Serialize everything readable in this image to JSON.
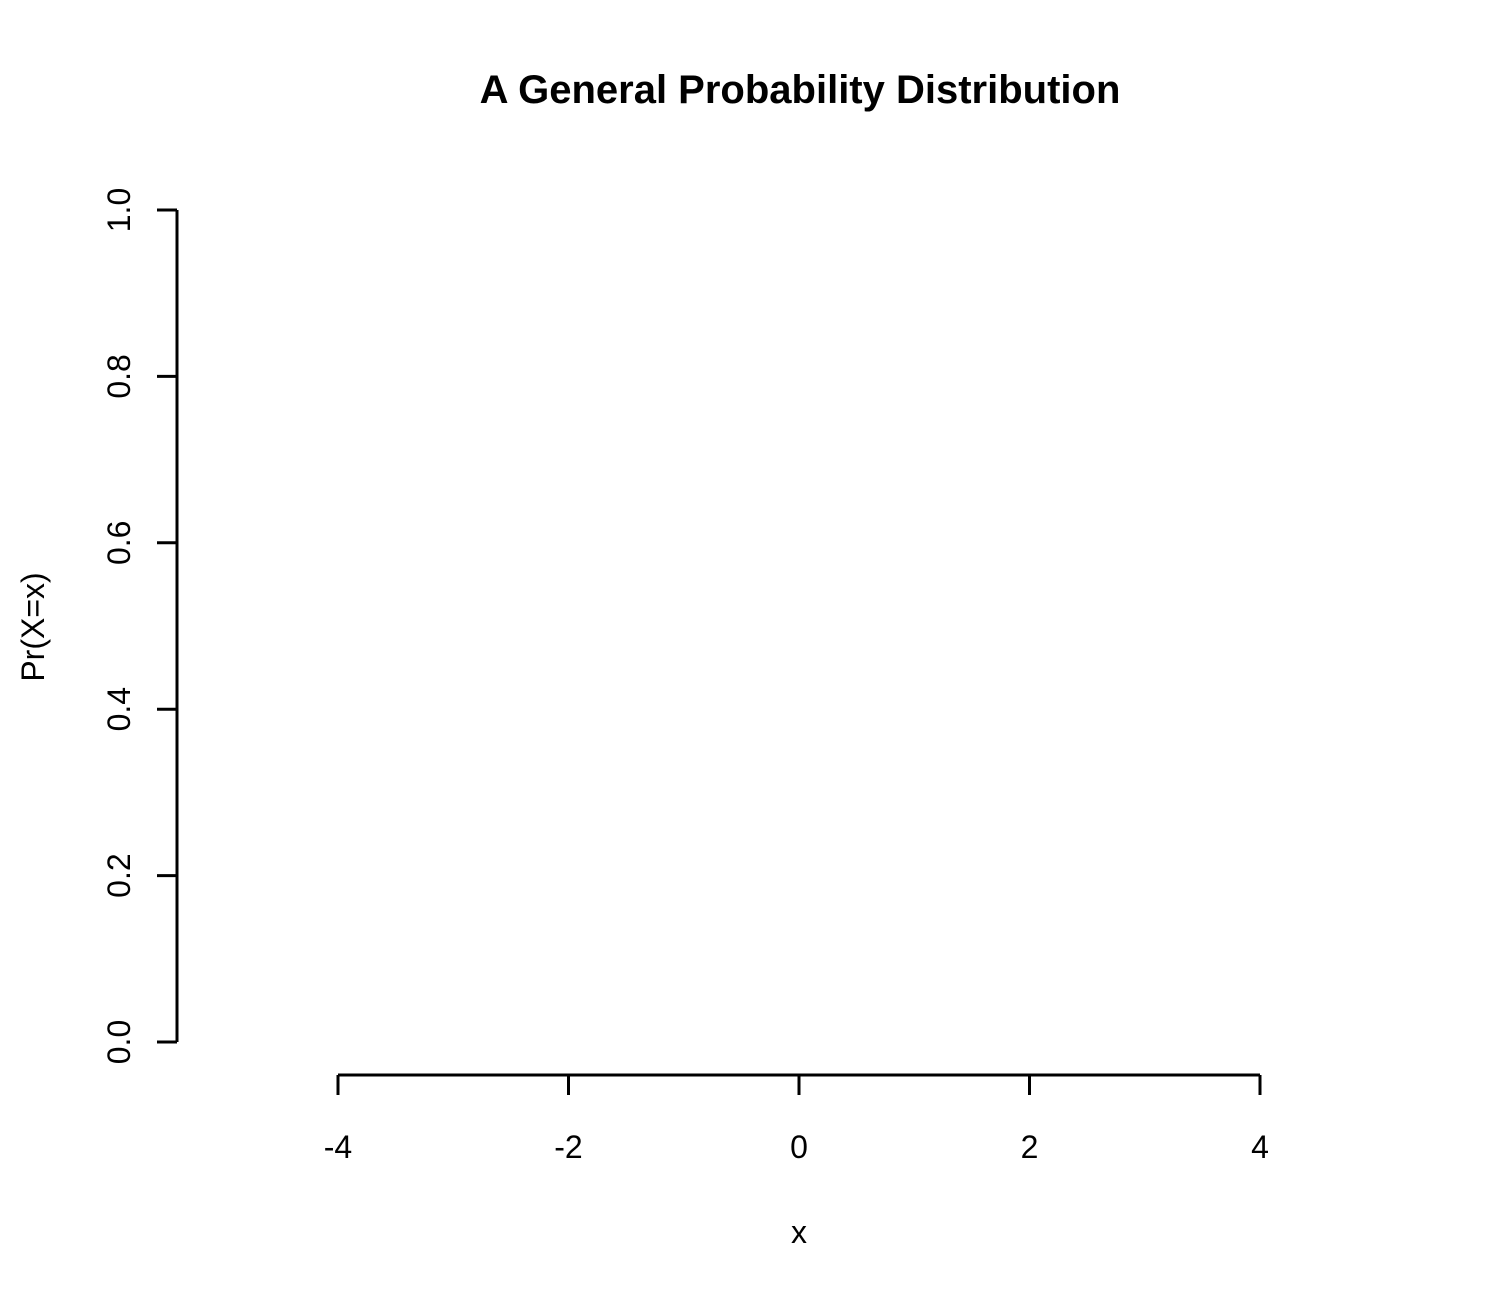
{
  "chart_data": {
    "type": "scatter",
    "title": "A General Probability Distribution",
    "xlabel": "x",
    "ylabel": "Pr(X=x)",
    "xlim": [
      -4,
      4
    ],
    "ylim": [
      0,
      1
    ],
    "x_ticks": [
      -4,
      -2,
      0,
      2,
      4
    ],
    "x_tick_labels": [
      "-4",
      "-2",
      "0",
      "2",
      "4"
    ],
    "y_ticks": [
      0,
      0.2,
      0.4,
      0.6,
      0.8,
      1.0
    ],
    "y_tick_labels": [
      "0.0",
      "0.2",
      "0.4",
      "0.6",
      "0.8",
      "1.0"
    ],
    "series": [],
    "grid": false,
    "axis_color": "#000000",
    "background": "#ffffff"
  }
}
